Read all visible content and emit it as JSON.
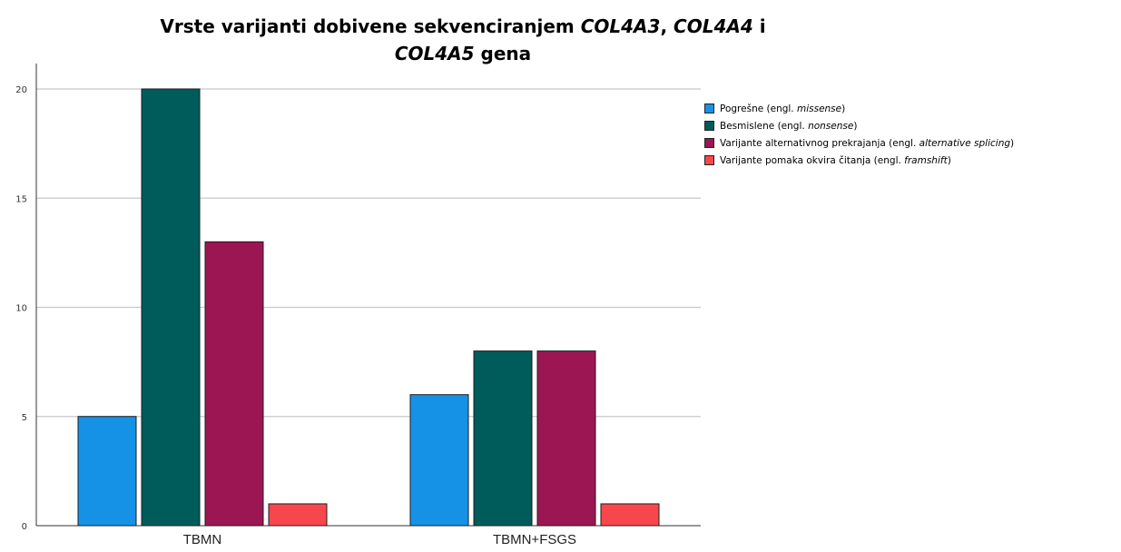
{
  "chart_data": {
    "type": "bar",
    "title_line1": "Vrste varijanti dobivene sekvenciranjem COL4A3, COL4A4 i",
    "title_line2": "COL4A5 gena",
    "xlabel": "",
    "ylabel": "",
    "ylim": [
      0,
      20
    ],
    "yticks": [
      0,
      5,
      10,
      15,
      20
    ],
    "grid": true,
    "legend_position": "right",
    "categories": [
      "TBMN",
      "TBMN+FSGS"
    ],
    "series": [
      {
        "name_plain": "Pogrešne (engl. ",
        "name_italic": "missense",
        "name_end": ")",
        "color": "#1592e6",
        "values": [
          5,
          6
        ]
      },
      {
        "name_plain": "Besmislene (engl. ",
        "name_italic": "nonsense",
        "name_end": ")",
        "color": "#005b5b",
        "values": [
          20,
          8
        ]
      },
      {
        "name_plain": "Varijante alternativnog prekrajanja (engl. ",
        "name_italic": "alternative splicing",
        "name_end": ")",
        "color": "#9c1654",
        "values": [
          13,
          8
        ]
      },
      {
        "name_plain": "Varijante pomaka okvira čitanja (engl. ",
        "name_italic": "framshift",
        "name_end": ")",
        "color": "#f7474d",
        "values": [
          1,
          1
        ]
      }
    ]
  }
}
